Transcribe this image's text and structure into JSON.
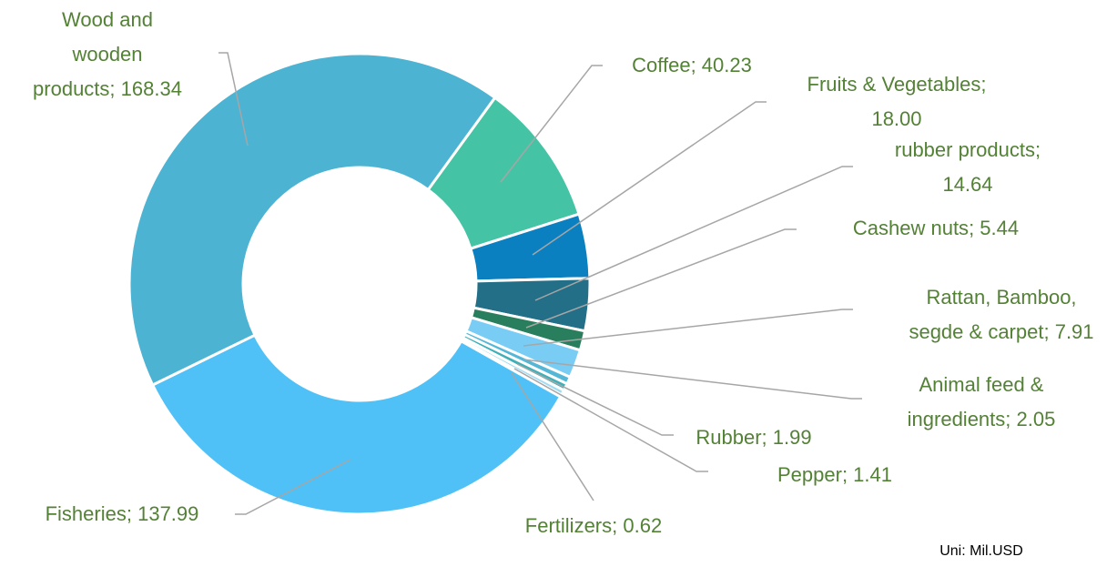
{
  "chart_data": {
    "type": "donut",
    "categories": [
      "Coffee",
      "Fruits & Vegetables",
      "rubber products",
      "Cashew nuts",
      "Rattan, Bamboo, segde & carpet",
      "Animal feed & ingredients",
      "Rubber",
      "Pepper",
      "Fertilizers",
      "Fisheries",
      "Wood and wooden products"
    ],
    "values": [
      40.23,
      18.0,
      14.64,
      5.44,
      7.91,
      2.05,
      1.99,
      1.41,
      0.62,
      137.99,
      168.34
    ],
    "value_labels": [
      "40.23",
      "18.00",
      "14.64",
      "5.44",
      "7.91",
      "2.05",
      "1.99",
      "1.41",
      "0.62",
      "137.99",
      "168.34"
    ],
    "colors": [
      "#45c3a5",
      "#0b80c0",
      "#236f87",
      "#287e5d",
      "#79cdf5",
      "#55b7d6",
      "#3fb0b8",
      "#a3dcf2",
      "#62c1d2",
      "#50c1f6",
      "#4db3d2"
    ],
    "unit_note": "Uni: Mil.USD"
  }
}
